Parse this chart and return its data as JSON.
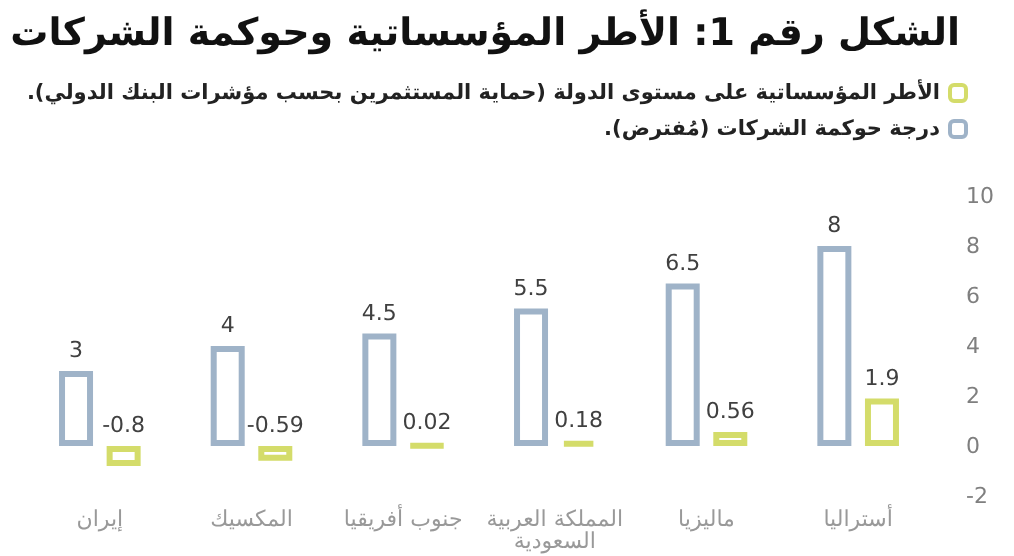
{
  "chart_data": {
    "type": "bar",
    "title": "الشكل رقم 1: الأطر المؤسساتية وحوكمة الشركات",
    "categories": [
      "إيران",
      "المكسيك",
      "جنوب أفريقيا",
      "المملكة العربية السعودية",
      "ماليزيا",
      "أستراليا"
    ],
    "series": [
      {
        "name": "درجة حوكمة الشركات (مُفترض).",
        "color": "#9fb3c8",
        "values": [
          3,
          4,
          4.5,
          5.5,
          6.5,
          8
        ]
      },
      {
        "name": "الأطر المؤسساتية على مستوى الدولة (حماية المستثمرين بحسب مؤشرات البنك الدولي).",
        "color": "#d4dc6a",
        "values": [
          -0.8,
          -0.59,
          0.02,
          0.18,
          0.56,
          1.9
        ]
      }
    ],
    "ylim": [
      -2,
      10
    ],
    "yticks": [
      -2,
      0,
      2,
      4,
      6,
      8,
      10
    ],
    "data_labels": true,
    "grid": false,
    "legend": "top right"
  }
}
